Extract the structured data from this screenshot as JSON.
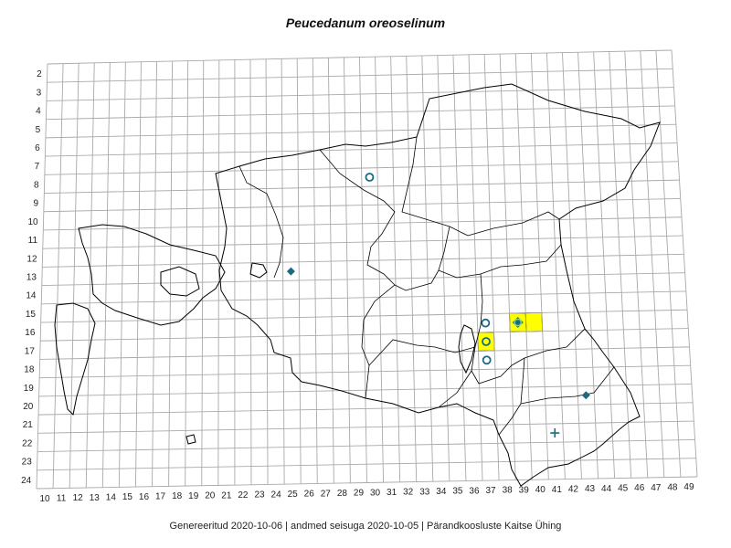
{
  "title": "Peucedanum oreoselinum",
  "footer": "Genereeritud 2020-10-06  |  andmed seisuga 2020-10-05  |  Pärandkoosluste Kaitse Ühing",
  "grid": {
    "columns": [
      10,
      11,
      12,
      13,
      14,
      15,
      16,
      17,
      18,
      19,
      20,
      21,
      22,
      23,
      24,
      25,
      26,
      27,
      28,
      29,
      30,
      31,
      32,
      33,
      34,
      35,
      36,
      37,
      38,
      39,
      40,
      41,
      42,
      43,
      44,
      45,
      46,
      47,
      48,
      49
    ],
    "rows": [
      2,
      3,
      4,
      5,
      6,
      7,
      8,
      9,
      10,
      11,
      12,
      13,
      14,
      15,
      16,
      17,
      18,
      19,
      20,
      21,
      22,
      23,
      24
    ]
  },
  "colors": {
    "grid": "#a9a9a9",
    "border": "#000000",
    "marker": "#1a6a82",
    "highlight": "#ffff00"
  },
  "markers": [
    {
      "col": 30,
      "row": 8,
      "symbol": "circle-open"
    },
    {
      "col": 25,
      "row": 13,
      "symbol": "diamond-filled"
    },
    {
      "col": 37,
      "row": 16,
      "symbol": "circle-open"
    },
    {
      "col": 37,
      "row": 17,
      "symbol": "circle-open",
      "highlight": true
    },
    {
      "col": 37,
      "row": 18,
      "symbol": "circle-open"
    },
    {
      "col": 39,
      "row": 16,
      "symbol": "circle-diamond",
      "highlight": true
    },
    {
      "col": 40,
      "row": 16,
      "symbol": "none",
      "highlight": true
    },
    {
      "col": 43,
      "row": 20,
      "symbol": "diamond-filled"
    },
    {
      "col": 41,
      "row": 22,
      "symbol": "cross"
    }
  ]
}
